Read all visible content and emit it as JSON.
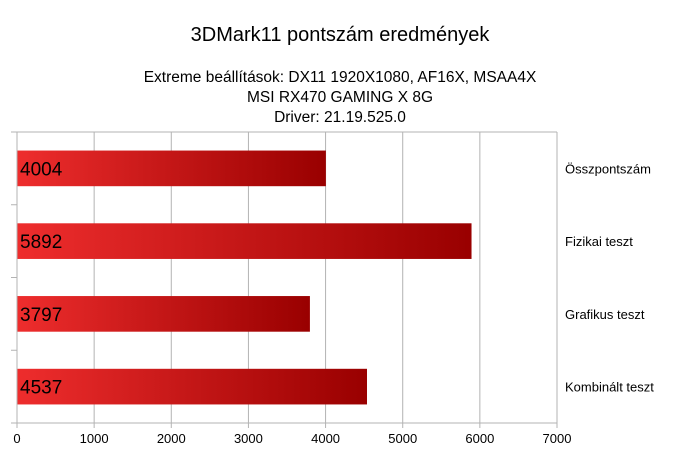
{
  "chart_data": {
    "type": "bar",
    "orientation": "horizontal",
    "title": "3DMark11 pontszám eredmények",
    "subtitle_lines": [
      "Extreme beállítások: DX11 1920X1080, AF16X, MSAA4X",
      "MSI RX470 GAMING X 8G",
      "Driver: 21.19.525.0"
    ],
    "categories": [
      "Összpontszám",
      "Fizikai teszt",
      "Grafikus teszt",
      "Kombinált teszt"
    ],
    "values": [
      4004,
      5892,
      3797,
      4537
    ],
    "xlim": [
      0,
      7000
    ],
    "xticks": [
      "0",
      "1000",
      "2000",
      "3000",
      "4000",
      "5000",
      "6000",
      "7000"
    ],
    "grid": true,
    "legend": "none",
    "data_labels": "inside-left",
    "colors": {
      "bar_light": "#ee2d2d",
      "bar_dark": "#990000",
      "grid": "#b3b3b3"
    }
  }
}
